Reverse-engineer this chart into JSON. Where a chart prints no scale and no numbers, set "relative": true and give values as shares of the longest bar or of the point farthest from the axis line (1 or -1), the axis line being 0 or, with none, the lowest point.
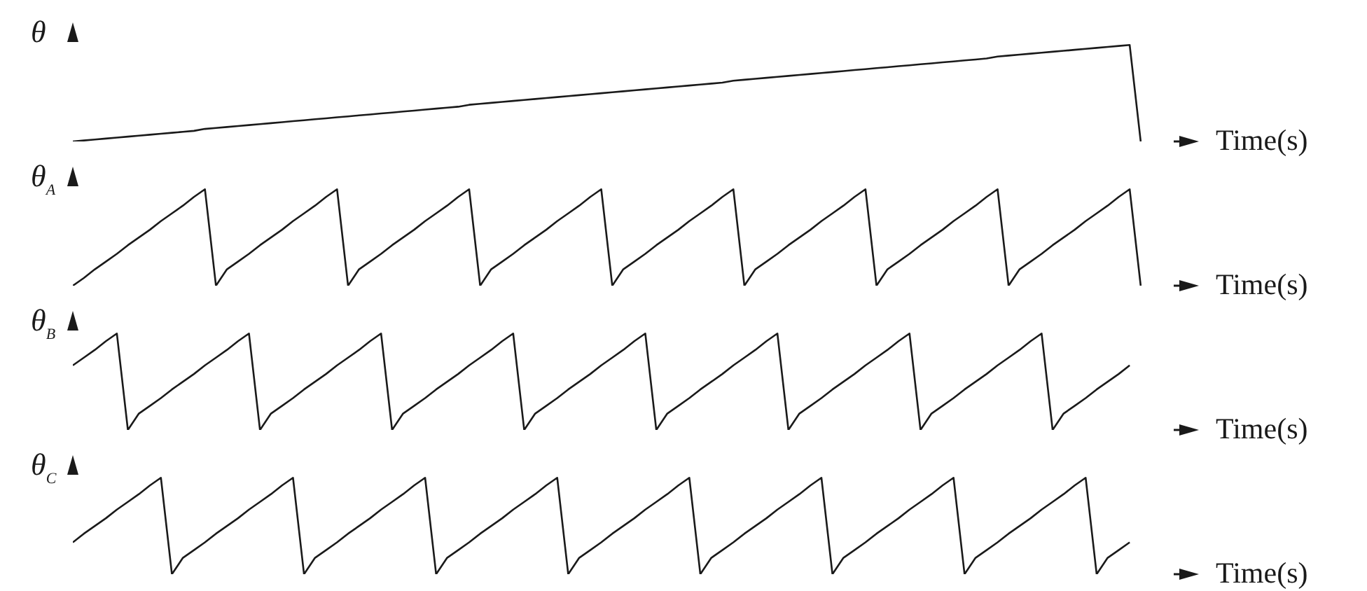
{
  "chart_data": [
    {
      "type": "line",
      "relative": true,
      "ylabel": "θ",
      "xlabel": "Time(s)",
      "tick_labels": false,
      "marker": "none",
      "line_style": "solid",
      "categories": [
        null,
        null,
        null,
        null,
        null,
        null,
        null,
        null,
        null,
        null,
        null,
        null,
        null,
        null,
        null,
        null,
        null,
        null,
        null,
        null,
        null,
        null,
        null,
        null,
        null,
        null,
        null,
        null,
        null,
        null,
        null,
        null,
        null,
        null,
        null,
        null,
        null,
        null,
        null,
        null,
        null,
        null,
        null,
        null,
        null,
        null,
        null,
        null,
        null,
        null,
        null,
        null,
        null,
        null,
        null,
        null,
        null,
        null,
        null,
        null,
        null,
        null,
        null,
        null,
        null,
        null,
        null,
        null,
        null,
        null,
        null,
        null,
        null,
        null,
        null,
        null,
        null,
        null,
        null,
        null,
        null,
        null,
        null,
        null,
        null,
        null,
        null,
        null,
        null,
        null,
        null,
        null,
        null,
        null,
        null,
        null,
        null,
        null,
        null,
        null,
        null
      ],
      "series": [
        {
          "color": "#1a1a1a",
          "values": [
            0,
            0.01,
            0.02,
            0.03,
            0.04,
            0.05,
            0.06,
            0.07,
            0.08,
            0.09,
            0.1,
            0.11,
            0.13,
            0.14,
            0.15,
            0.16,
            0.17,
            0.18,
            0.19,
            0.2,
            0.21,
            0.22,
            0.23,
            0.24,
            0.25,
            0.26,
            0.27,
            0.28,
            0.29,
            0.3,
            0.31,
            0.32,
            0.33,
            0.34,
            0.35,
            0.36,
            0.38,
            0.39,
            0.4,
            0.41,
            0.42,
            0.43,
            0.44,
            0.45,
            0.46,
            0.47,
            0.48,
            0.49,
            0.5,
            0.51,
            0.52,
            0.53,
            0.54,
            0.55,
            0.56,
            0.57,
            0.58,
            0.59,
            0.6,
            0.61,
            0.63,
            0.64,
            0.65,
            0.66,
            0.67,
            0.68,
            0.69,
            0.7,
            0.71,
            0.72,
            0.73,
            0.74,
            0.75,
            0.76,
            0.77,
            0.78,
            0.79,
            0.8,
            0.81,
            0.82,
            0.83,
            0.84,
            0.85,
            0.86,
            0.88,
            0.89,
            0.9,
            0.91,
            0.92,
            0.93,
            0.94,
            0.95,
            0.96,
            0.97,
            0.98,
            0.99,
            1,
            0,
            null,
            null,
            null
          ]
        }
      ]
    },
    {
      "type": "line",
      "relative": true,
      "ylabel": "θ$_{A}$",
      "xlabel": "Time(s)",
      "tick_labels": false,
      "marker": "none",
      "line_style": "solid",
      "categories": [
        null,
        null,
        null,
        null,
        null,
        null,
        null,
        null,
        null,
        null,
        null,
        null,
        null,
        null,
        null,
        null,
        null,
        null,
        null,
        null,
        null,
        null,
        null,
        null,
        null,
        null,
        null,
        null,
        null,
        null,
        null,
        null,
        null,
        null,
        null,
        null,
        null,
        null,
        null,
        null,
        null,
        null,
        null,
        null,
        null,
        null,
        null,
        null,
        null,
        null,
        null,
        null,
        null,
        null,
        null,
        null,
        null,
        null,
        null,
        null,
        null,
        null,
        null,
        null,
        null,
        null,
        null,
        null,
        null,
        null,
        null,
        null,
        null,
        null,
        null,
        null,
        null,
        null,
        null,
        null,
        null,
        null,
        null,
        null,
        null,
        null,
        null,
        null,
        null,
        null,
        null,
        null,
        null,
        null,
        null,
        null,
        null,
        null,
        null,
        null,
        null
      ],
      "series": [
        {
          "color": "#1a1a1a",
          "values": [
            0,
            0.08,
            0.17,
            0.25,
            0.33,
            0.42,
            0.5,
            0.58,
            0.67,
            0.75,
            0.83,
            0.92,
            1,
            0,
            0.17,
            0.25,
            0.33,
            0.42,
            0.5,
            0.58,
            0.67,
            0.75,
            0.83,
            0.92,
            1,
            0,
            0.17,
            0.25,
            0.33,
            0.42,
            0.5,
            0.58,
            0.67,
            0.75,
            0.83,
            0.92,
            1,
            0,
            0.17,
            0.25,
            0.33,
            0.42,
            0.5,
            0.58,
            0.67,
            0.75,
            0.83,
            0.92,
            1,
            0,
            0.17,
            0.25,
            0.33,
            0.42,
            0.5,
            0.58,
            0.67,
            0.75,
            0.83,
            0.92,
            1,
            0,
            0.17,
            0.25,
            0.33,
            0.42,
            0.5,
            0.58,
            0.67,
            0.75,
            0.83,
            0.92,
            1,
            0,
            0.17,
            0.25,
            0.33,
            0.42,
            0.5,
            0.58,
            0.67,
            0.75,
            0.83,
            0.92,
            1,
            0,
            0.17,
            0.25,
            0.33,
            0.42,
            0.5,
            0.58,
            0.67,
            0.75,
            0.83,
            0.92,
            1,
            0,
            null,
            null,
            null
          ]
        }
      ]
    },
    {
      "type": "line",
      "relative": true,
      "ylabel": "θ$_{B}$",
      "xlabel": "Time(s)",
      "tick_labels": false,
      "marker": "none",
      "line_style": "solid",
      "categories": [
        null,
        null,
        null,
        null,
        null,
        null,
        null,
        null,
        null,
        null,
        null,
        null,
        null,
        null,
        null,
        null,
        null,
        null,
        null,
        null,
        null,
        null,
        null,
        null,
        null,
        null,
        null,
        null,
        null,
        null,
        null,
        null,
        null,
        null,
        null,
        null,
        null,
        null,
        null,
        null,
        null,
        null,
        null,
        null,
        null,
        null,
        null,
        null,
        null,
        null,
        null,
        null,
        null,
        null,
        null,
        null,
        null,
        null,
        null,
        null,
        null,
        null,
        null,
        null,
        null,
        null,
        null,
        null,
        null,
        null,
        null,
        null,
        null,
        null,
        null,
        null,
        null,
        null,
        null,
        null,
        null,
        null,
        null,
        null,
        null,
        null,
        null,
        null,
        null,
        null,
        null,
        null,
        null,
        null,
        null,
        null,
        null,
        null,
        null,
        null,
        null
      ],
      "series": [
        {
          "color": "#1a1a1a",
          "values": [
            0.67,
            0.75,
            0.83,
            0.92,
            1,
            0,
            0.17,
            0.25,
            0.33,
            0.42,
            0.5,
            0.58,
            0.67,
            0.75,
            0.83,
            0.92,
            1,
            0,
            0.17,
            0.25,
            0.33,
            0.42,
            0.5,
            0.58,
            0.67,
            0.75,
            0.83,
            0.92,
            1,
            0,
            0.17,
            0.25,
            0.33,
            0.42,
            0.5,
            0.58,
            0.67,
            0.75,
            0.83,
            0.92,
            1,
            0,
            0.17,
            0.25,
            0.33,
            0.42,
            0.5,
            0.58,
            0.67,
            0.75,
            0.83,
            0.92,
            1,
            0,
            0.17,
            0.25,
            0.33,
            0.42,
            0.5,
            0.58,
            0.67,
            0.75,
            0.83,
            0.92,
            1,
            0,
            0.17,
            0.25,
            0.33,
            0.42,
            0.5,
            0.58,
            0.67,
            0.75,
            0.83,
            0.92,
            1,
            0,
            0.17,
            0.25,
            0.33,
            0.42,
            0.5,
            0.58,
            0.67,
            0.75,
            0.83,
            0.92,
            1,
            0,
            0.17,
            0.25,
            0.33,
            0.42,
            0.5,
            0.58,
            0.67,
            null,
            null,
            null,
            null
          ]
        }
      ]
    },
    {
      "type": "line",
      "relative": true,
      "ylabel": "θ$_{C}$",
      "xlabel": "Time(s)",
      "tick_labels": false,
      "marker": "none",
      "line_style": "solid",
      "categories": [
        null,
        null,
        null,
        null,
        null,
        null,
        null,
        null,
        null,
        null,
        null,
        null,
        null,
        null,
        null,
        null,
        null,
        null,
        null,
        null,
        null,
        null,
        null,
        null,
        null,
        null,
        null,
        null,
        null,
        null,
        null,
        null,
        null,
        null,
        null,
        null,
        null,
        null,
        null,
        null,
        null,
        null,
        null,
        null,
        null,
        null,
        null,
        null,
        null,
        null,
        null,
        null,
        null,
        null,
        null,
        null,
        null,
        null,
        null,
        null,
        null,
        null,
        null,
        null,
        null,
        null,
        null,
        null,
        null,
        null,
        null,
        null,
        null,
        null,
        null,
        null,
        null,
        null,
        null,
        null,
        null,
        null,
        null,
        null,
        null,
        null,
        null,
        null,
        null,
        null,
        null,
        null,
        null,
        null,
        null,
        null,
        null,
        null,
        null,
        null,
        null
      ],
      "series": [
        {
          "color": "#1a1a1a",
          "values": [
            0.33,
            0.42,
            0.5,
            0.58,
            0.67,
            0.75,
            0.83,
            0.92,
            1,
            0,
            0.17,
            0.25,
            0.33,
            0.42,
            0.5,
            0.58,
            0.67,
            0.75,
            0.83,
            0.92,
            1,
            0,
            0.17,
            0.25,
            0.33,
            0.42,
            0.5,
            0.58,
            0.67,
            0.75,
            0.83,
            0.92,
            1,
            0,
            0.17,
            0.25,
            0.33,
            0.42,
            0.5,
            0.58,
            0.67,
            0.75,
            0.83,
            0.92,
            1,
            0,
            0.17,
            0.25,
            0.33,
            0.42,
            0.5,
            0.58,
            0.67,
            0.75,
            0.83,
            0.92,
            1,
            0,
            0.17,
            0.25,
            0.33,
            0.42,
            0.5,
            0.58,
            0.67,
            0.75,
            0.83,
            0.92,
            1,
            0,
            0.17,
            0.25,
            0.33,
            0.42,
            0.5,
            0.58,
            0.67,
            0.75,
            0.83,
            0.92,
            1,
            0,
            0.17,
            0.25,
            0.33,
            0.42,
            0.5,
            0.58,
            0.67,
            0.75,
            0.83,
            0.92,
            1,
            0,
            0.17,
            0.25,
            0.33,
            null,
            null,
            null,
            null
          ]
        }
      ]
    }
  ]
}
